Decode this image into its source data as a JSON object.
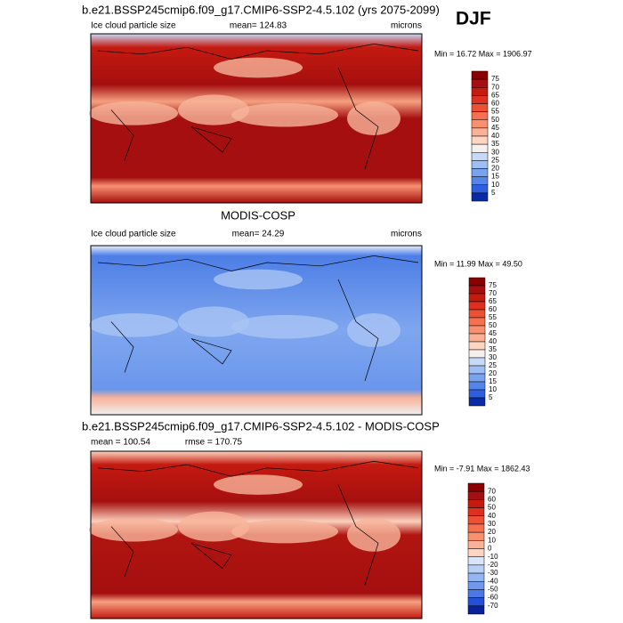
{
  "season": "DJF",
  "panels": [
    {
      "title": "b.e21.BSSP245cmip6.f09_g17.CMIP6-SSP2-4.5.102 (yrs 2075-2099)",
      "left": "Ice cloud particle size",
      "center": "mean= 124.83",
      "right": "microns",
      "minmax": "Min =  16.72 Max = 1906.97"
    },
    {
      "title": "MODIS-COSP",
      "left": "Ice cloud particle size",
      "center": "mean=  24.29",
      "right": "microns",
      "minmax": "Min =  11.99 Max =  49.50"
    },
    {
      "title": "b.e21.BSSP245cmip6.f09_g17.CMIP6-SSP2-4.5.102 - MODIS-COSP",
      "left": "mean = 100.54",
      "center": "rmse = 170.75",
      "minmax": "Min =  -7.91 Max = 1862.43"
    }
  ],
  "colorbars": [
    {
      "labels": [
        75,
        70,
        65,
        60,
        55,
        50,
        45,
        40,
        35,
        30,
        25,
        20,
        15,
        10,
        5
      ],
      "colors": [
        "#8b0000",
        "#a50f0f",
        "#c41a10",
        "#dd3020",
        "#ee5033",
        "#f47050",
        "#f89070",
        "#fbb195",
        "#fdd5c0",
        "#f5f0ee",
        "#c6daf8",
        "#9fbff4",
        "#7aa3ef",
        "#5585e8",
        "#2f5ee0",
        "#0a2aa8"
      ]
    },
    {
      "labels": [
        75,
        70,
        65,
        60,
        55,
        50,
        45,
        40,
        35,
        30,
        25,
        20,
        15,
        10,
        5
      ],
      "colors": [
        "#8b0000",
        "#a50f0f",
        "#c41a10",
        "#dd3020",
        "#ee5033",
        "#f47050",
        "#f89070",
        "#fbb195",
        "#fdd5c0",
        "#f5f0ee",
        "#c6daf8",
        "#9fbff4",
        "#7aa3ef",
        "#5585e8",
        "#2f5ee0",
        "#0a2aa8"
      ]
    },
    {
      "labels": [
        70,
        60,
        50,
        40,
        30,
        20,
        10,
        0,
        -10,
        -20,
        -30,
        -40,
        -50,
        -60,
        -70
      ],
      "colors": [
        "#8b0000",
        "#a50f0f",
        "#c41a10",
        "#dd3020",
        "#ee5033",
        "#f47050",
        "#f89070",
        "#fbb195",
        "#fdd5c0",
        "#d9e5fa",
        "#b8cff6",
        "#95b5f2",
        "#7098ec",
        "#4a78e5",
        "#2450d8",
        "#0a1f9a"
      ]
    }
  ]
}
